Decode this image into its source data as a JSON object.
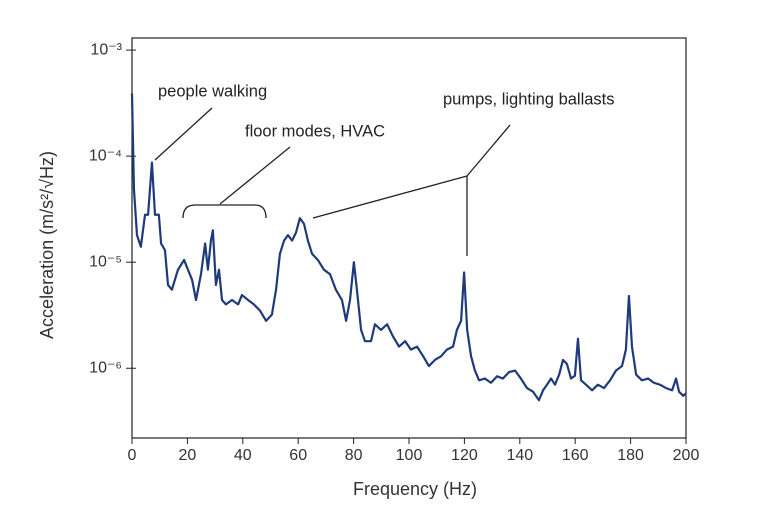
{
  "chart_data": {
    "type": "line",
    "xlabel": "Frequency (Hz)",
    "ylabel": "Acceleration (m/s²/√Hz)",
    "ylog": true,
    "xlim": [
      0,
      200
    ],
    "ylim": [
      2.2e-07,
      0.0013
    ],
    "xticks": [
      0,
      20,
      40,
      60,
      80,
      100,
      120,
      140,
      160,
      180,
      200
    ],
    "yticks": [
      {
        "value": 0.001,
        "label": "10⁻³"
      },
      {
        "value": 0.0001,
        "label": "10⁻⁴"
      },
      {
        "value": 1e-05,
        "label": "10⁻⁵"
      },
      {
        "value": 1e-06,
        "label": "10⁻⁶"
      }
    ],
    "annotations": [
      "people walking",
      "floor modes, HVAC",
      "pumps, lighting ballasts"
    ],
    "series": [
      {
        "color": "#1f3a7a",
        "x": [
          0,
          0.7,
          1.8,
          3.2,
          4.7,
          5.8,
          7.2,
          8.3,
          9.7,
          10.5,
          11.9,
          13,
          14.4,
          16.6,
          18.8,
          20.2,
          21.7,
          23.1,
          24.9,
          26.4,
          27.4,
          28.5,
          29.2,
          30.3,
          31.4,
          32.5,
          33.9,
          36.1,
          38.3,
          39.7,
          41.9,
          44,
          46.2,
          48.4,
          50.5,
          52,
          53.4,
          54.9,
          56.3,
          57.8,
          59.2,
          60.6,
          62.1,
          63.5,
          65,
          67.1,
          69.3,
          71.5,
          73.6,
          75.8,
          77.3,
          78.7,
          80.1,
          81.2,
          82.7,
          84.1,
          86.3,
          87.7,
          89.9,
          92.1,
          94.2,
          96.4,
          98.6,
          100.7,
          102.9,
          105.1,
          107.2,
          109.4,
          111.6,
          113.7,
          115.9,
          117.3,
          118.8,
          119.9,
          121,
          122.4,
          123.8,
          125.3,
          127.4,
          129.6,
          131.8,
          133.9,
          136.1,
          138.3,
          140.4,
          142.6,
          144.8,
          146.9,
          148.4,
          149.8,
          151.3,
          152.7,
          154.2,
          155.6,
          157,
          158.5,
          159.9,
          161,
          162.1,
          163.9,
          166.1,
          168.2,
          170.4,
          172.6,
          174.7,
          176.9,
          178.3,
          179.4,
          180.5,
          182,
          184.1,
          186.3,
          188.4,
          190.6,
          192.8,
          195,
          196.4,
          197.5,
          199,
          200
        ],
        "values": [
          0.00039,
          4.9e-05,
          1.8e-05,
          1.4e-05,
          2.8e-05,
          2.8e-05,
          8.7e-05,
          2.8e-05,
          2.8e-05,
          1.5e-05,
          1.3e-05,
          6.1e-06,
          5.5e-06,
          8.5e-06,
          1.05e-05,
          8.5e-06,
          6.8e-06,
          4.4e-06,
          7.7e-06,
          1.5e-05,
          8.5e-06,
          1.6e-05,
          2e-05,
          6.1e-06,
          8.5e-06,
          4.4e-06,
          4e-06,
          4.4e-06,
          4e-06,
          4.9e-06,
          4.4e-06,
          4e-06,
          3.5e-06,
          2.8e-06,
          3.2e-06,
          5.5e-06,
          1.2e-05,
          1.6e-05,
          1.8e-05,
          1.6e-05,
          1.9e-05,
          2.6e-05,
          2.3e-05,
          1.6e-05,
          1.2e-05,
          1.05e-05,
          8.5e-06,
          7.7e-06,
          5.5e-06,
          4.4e-06,
          2.8e-06,
          4.4e-06,
          1e-05,
          5.5e-06,
          2.3e-06,
          1.8e-06,
          1.8e-06,
          2.6e-06,
          2.3e-06,
          2.6e-06,
          2e-06,
          1.6e-06,
          1.8e-06,
          1.5e-06,
          1.6e-06,
          1.3e-06,
          1.05e-06,
          1.2e-06,
          1.3e-06,
          1.5e-06,
          1.6e-06,
          2.3e-06,
          2.8e-06,
          8e-06,
          2.3e-06,
          1.3e-06,
          9.5e-07,
          7.7e-07,
          8e-07,
          7.3e-07,
          8.4e-07,
          8e-07,
          9.2e-07,
          9.5e-07,
          8e-07,
          6.5e-07,
          6e-07,
          5e-07,
          6.2e-07,
          7e-07,
          8e-07,
          7e-07,
          8.7e-07,
          1.2e-06,
          1.1e-06,
          8e-07,
          8.5e-07,
          1.9e-06,
          7.7e-07,
          7e-07,
          6.2e-07,
          7e-07,
          6.5e-07,
          7.7e-07,
          9.5e-07,
          1.05e-06,
          1.5e-06,
          4.8e-06,
          1.6e-06,
          8.7e-07,
          7.7e-07,
          8e-07,
          7.3e-07,
          7e-07,
          6.5e-07,
          6.2e-07,
          8e-07,
          6e-07,
          5.5e-07,
          5.8e-07
        ]
      }
    ]
  }
}
